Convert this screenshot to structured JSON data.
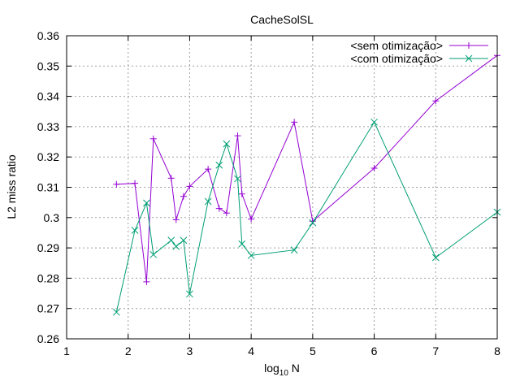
{
  "chart_data": {
    "type": "line",
    "title": "CacheSolSL",
    "xlabel_main": "log",
    "xlabel_sub": "10",
    "xlabel_tail": " N",
    "ylabel": "L2 miss ratio",
    "xlim": [
      1,
      8
    ],
    "ylim": [
      0.26,
      0.36
    ],
    "grid": true,
    "legend_position": "top-right",
    "xticks": [
      1,
      2,
      3,
      4,
      5,
      6,
      7,
      8
    ],
    "xtick_labels": [
      "1",
      "2",
      "3",
      "4",
      "5",
      "6",
      "7",
      "8"
    ],
    "yticks": [
      0.26,
      0.27,
      0.28,
      0.29,
      0.3,
      0.31,
      0.32,
      0.33,
      0.34,
      0.35,
      0.36
    ],
    "ytick_labels": [
      "0.26",
      "0.27",
      "0.28",
      "0.29",
      "0.3",
      "0.31",
      "0.32",
      "0.33",
      "0.34",
      "0.35",
      "0.36"
    ],
    "series": [
      {
        "name": "<sem otimização>",
        "color": "#9400d3",
        "marker": "plus",
        "x": [
          1.81,
          2.11,
          2.3,
          2.41,
          2.7,
          2.78,
          2.9,
          3.0,
          3.3,
          3.48,
          3.6,
          3.78,
          3.85,
          4.0,
          4.7,
          5.0,
          6.0,
          7.0,
          8.0
        ],
        "y": [
          0.311,
          0.3113,
          0.2788,
          0.326,
          0.313,
          0.2993,
          0.307,
          0.3103,
          0.316,
          0.303,
          0.3015,
          0.327,
          0.3078,
          0.2995,
          0.3315,
          0.2988,
          0.3163,
          0.3385,
          0.3535
        ]
      },
      {
        "name": "<com otimização>",
        "color": "#009e73",
        "marker": "cross",
        "x": [
          1.81,
          2.11,
          2.3,
          2.41,
          2.7,
          2.78,
          2.9,
          3.0,
          3.3,
          3.48,
          3.6,
          3.78,
          3.85,
          4.0,
          4.7,
          5.0,
          6.0,
          7.0,
          8.0
        ],
        "y": [
          0.2688,
          0.2958,
          0.3048,
          0.2878,
          0.2925,
          0.2905,
          0.2925,
          0.2748,
          0.3053,
          0.3173,
          0.3243,
          0.3128,
          0.2913,
          0.2875,
          0.2893,
          0.2983,
          0.3315,
          0.2868,
          0.3018
        ]
      }
    ]
  }
}
